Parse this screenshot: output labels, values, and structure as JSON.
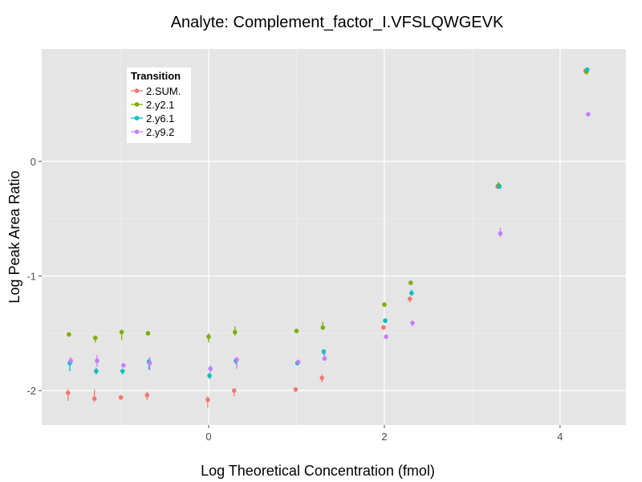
{
  "chart_data": {
    "type": "scatter",
    "title": "Analyte: Complement_factor_I.VFSLQWGEVK",
    "xlabel": "Log Theoretical Concentration (fmol)",
    "ylabel": "Log Peak Area Ratio",
    "xlim": [
      -1.9,
      4.75
    ],
    "ylim": [
      -2.3,
      0.98
    ],
    "x_ticks": [
      0,
      2,
      4
    ],
    "x_tick_labels": [
      "0",
      "2",
      "4"
    ],
    "y_ticks": [
      0,
      -1,
      -2
    ],
    "y_tick_labels": [
      "0",
      "-1",
      "-2"
    ],
    "grid": true,
    "legend": {
      "title": "Transition",
      "position": "top-left",
      "entries": [
        "2.SUM.",
        "2.y2.1",
        "2.y6.1",
        "2.y9.2"
      ]
    },
    "series": [
      {
        "name": "2.SUM.",
        "color": "#F8766D",
        "points": [
          {
            "x": -1.6,
            "y": -2.02,
            "lo": -2.09,
            "hi": -1.99
          },
          {
            "x": -1.3,
            "y": -2.07,
            "lo": -2.1,
            "hi": -1.99
          },
          {
            "x": -1.0,
            "y": -2.06,
            "lo": -2.08,
            "hi": -2.04
          },
          {
            "x": -0.7,
            "y": -2.04,
            "lo": -2.08,
            "hi": -2.01
          },
          {
            "x": -0.01,
            "y": -2.08,
            "lo": -2.15,
            "hi": -2.05
          },
          {
            "x": 0.29,
            "y": -2.0,
            "lo": -2.05,
            "hi": -1.98
          },
          {
            "x": 0.99,
            "y": -1.99,
            "lo": -2.01,
            "hi": -1.97
          },
          {
            "x": 1.29,
            "y": -1.89,
            "lo": -1.93,
            "hi": -1.86
          },
          {
            "x": 1.99,
            "y": -1.45,
            "lo": -1.47,
            "hi": -1.43
          },
          {
            "x": 2.29,
            "y": -1.2,
            "lo": -1.23,
            "hi": -1.18
          },
          {
            "x": 3.29,
            "y": -0.22,
            "lo": -0.24,
            "hi": -0.2
          },
          {
            "x": 4.29,
            "y": 0.79,
            "lo": 0.78,
            "hi": 0.81
          }
        ]
      },
      {
        "name": "2.y2.1",
        "color": "#7CAE00",
        "points": [
          {
            "x": -1.59,
            "y": -1.51,
            "lo": -1.53,
            "hi": -1.49
          },
          {
            "x": -1.29,
            "y": -1.54,
            "lo": -1.58,
            "hi": -1.52
          },
          {
            "x": -0.99,
            "y": -1.49,
            "lo": -1.56,
            "hi": -1.47
          },
          {
            "x": -0.69,
            "y": -1.5,
            "lo": -1.52,
            "hi": -1.48
          },
          {
            "x": 0.0,
            "y": -1.53,
            "lo": -1.58,
            "hi": -1.5
          },
          {
            "x": 0.3,
            "y": -1.49,
            "lo": -1.52,
            "hi": -1.44
          },
          {
            "x": 1.0,
            "y": -1.48,
            "lo": -1.5,
            "hi": -1.46
          },
          {
            "x": 1.3,
            "y": -1.45,
            "lo": -1.47,
            "hi": -1.4
          },
          {
            "x": 2.0,
            "y": -1.25,
            "lo": -1.27,
            "hi": -1.23
          },
          {
            "x": 2.3,
            "y": -1.06,
            "lo": -1.08,
            "hi": -1.04
          },
          {
            "x": 3.3,
            "y": -0.21,
            "lo": -0.23,
            "hi": -0.18
          },
          {
            "x": 4.3,
            "y": 0.78,
            "lo": 0.76,
            "hi": 0.8
          }
        ]
      },
      {
        "name": "2.y6.1",
        "color": "#00BFC4",
        "points": [
          {
            "x": -1.58,
            "y": -1.76,
            "lo": -1.83,
            "hi": -1.73
          },
          {
            "x": -1.28,
            "y": -1.83,
            "lo": -1.86,
            "hi": -1.8
          },
          {
            "x": -0.98,
            "y": -1.83,
            "lo": -1.86,
            "hi": -1.81
          },
          {
            "x": -0.68,
            "y": -1.75,
            "lo": -1.82,
            "hi": -1.72
          },
          {
            "x": 0.01,
            "y": -1.87,
            "lo": -1.9,
            "hi": -1.84
          },
          {
            "x": 0.31,
            "y": -1.74,
            "lo": -1.77,
            "hi": -1.72
          },
          {
            "x": 1.01,
            "y": -1.76,
            "lo": -1.78,
            "hi": -1.74
          },
          {
            "x": 1.31,
            "y": -1.66,
            "lo": -1.69,
            "hi": -1.64
          },
          {
            "x": 2.01,
            "y": -1.39,
            "lo": -1.41,
            "hi": -1.37
          },
          {
            "x": 2.31,
            "y": -1.15,
            "lo": -1.17,
            "hi": -1.12
          },
          {
            "x": 3.31,
            "y": -0.22,
            "lo": -0.24,
            "hi": -0.2
          },
          {
            "x": 4.31,
            "y": 0.8,
            "lo": 0.78,
            "hi": 0.82
          }
        ]
      },
      {
        "name": "2.y9.2",
        "color": "#C77CFF",
        "points": [
          {
            "x": -1.57,
            "y": -1.74,
            "lo": -1.77,
            "hi": -1.71
          },
          {
            "x": -1.27,
            "y": -1.74,
            "lo": -1.79,
            "hi": -1.69
          },
          {
            "x": -0.97,
            "y": -1.78,
            "lo": -1.8,
            "hi": -1.76
          },
          {
            "x": -0.67,
            "y": -1.76,
            "lo": -1.82,
            "hi": -1.71
          },
          {
            "x": 0.02,
            "y": -1.81,
            "lo": -1.84,
            "hi": -1.78
          },
          {
            "x": 0.32,
            "y": -1.73,
            "lo": -1.81,
            "hi": -1.71
          },
          {
            "x": 1.02,
            "y": -1.75,
            "lo": -1.77,
            "hi": -1.73
          },
          {
            "x": 1.32,
            "y": -1.72,
            "lo": -1.74,
            "hi": -1.67
          },
          {
            "x": 2.02,
            "y": -1.53,
            "lo": -1.55,
            "hi": -1.51
          },
          {
            "x": 2.32,
            "y": -1.41,
            "lo": -1.44,
            "hi": -1.39
          },
          {
            "x": 3.32,
            "y": -0.63,
            "lo": -0.66,
            "hi": -0.58
          },
          {
            "x": 4.32,
            "y": 0.41,
            "lo": 0.4,
            "hi": 0.42
          }
        ]
      }
    ]
  }
}
